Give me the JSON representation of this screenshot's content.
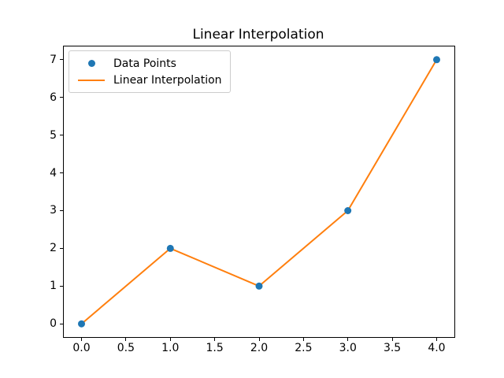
{
  "chart_data": {
    "type": "line",
    "title": "Linear Interpolation",
    "x": [
      0,
      1,
      2,
      3,
      4
    ],
    "series": [
      {
        "name": "Data Points",
        "style": "scatter",
        "values": [
          0,
          2,
          1,
          3,
          7
        ]
      },
      {
        "name": "Linear Interpolation",
        "style": "line",
        "values": [
          0,
          2,
          1,
          3,
          7
        ]
      }
    ],
    "xlabel": "",
    "ylabel": "",
    "xlim": [
      -0.2,
      4.2
    ],
    "ylim": [
      -0.35,
      7.35
    ],
    "xticks": [
      {
        "value": 0.0,
        "label": "0.0"
      },
      {
        "value": 0.5,
        "label": "0.5"
      },
      {
        "value": 1.0,
        "label": "1.0"
      },
      {
        "value": 1.5,
        "label": "1.5"
      },
      {
        "value": 2.0,
        "label": "2.0"
      },
      {
        "value": 2.5,
        "label": "2.5"
      },
      {
        "value": 3.0,
        "label": "3.0"
      },
      {
        "value": 3.5,
        "label": "3.5"
      },
      {
        "value": 4.0,
        "label": "4.0"
      }
    ],
    "yticks": [
      {
        "value": 0,
        "label": "0"
      },
      {
        "value": 1,
        "label": "1"
      },
      {
        "value": 2,
        "label": "2"
      },
      {
        "value": 3,
        "label": "3"
      },
      {
        "value": 4,
        "label": "4"
      },
      {
        "value": 5,
        "label": "5"
      },
      {
        "value": 6,
        "label": "6"
      },
      {
        "value": 7,
        "label": "7"
      }
    ],
    "grid": false,
    "legend_position": "upper-left",
    "colors": {
      "marker": "#1f77b4",
      "line": "#ff7f0e",
      "axes_edge": "#000000",
      "legend_edge": "#cccccc"
    }
  }
}
